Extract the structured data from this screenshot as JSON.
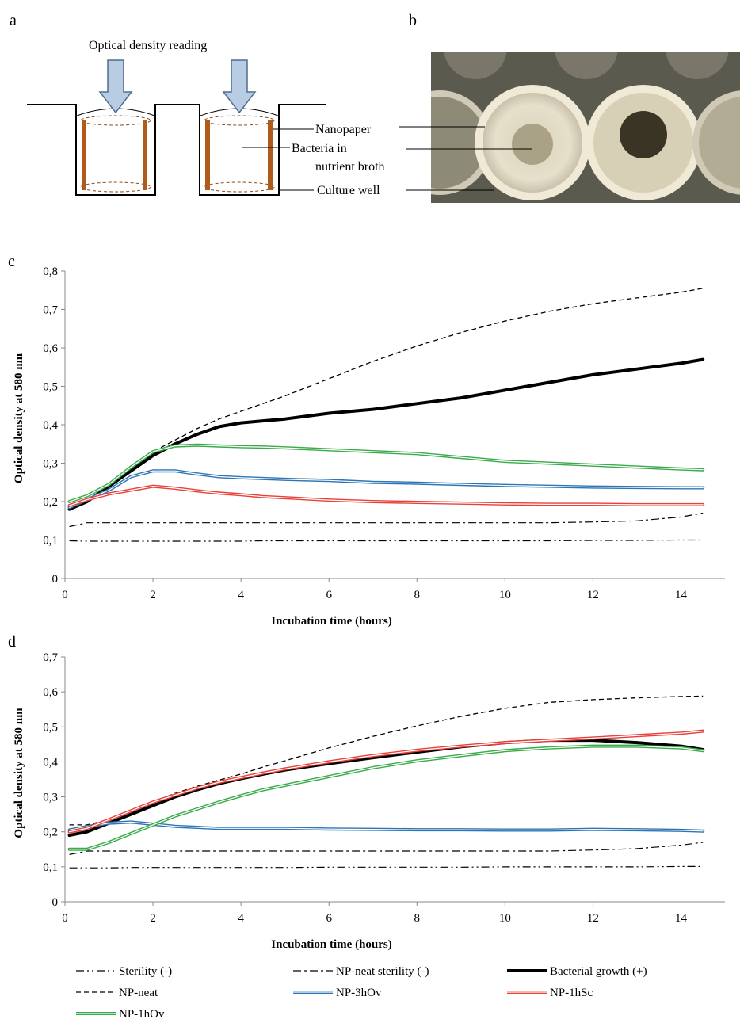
{
  "panels": {
    "a": {
      "letter": "a",
      "title": "Optical density reading",
      "labels": {
        "nanopaper": "Nanopaper",
        "bacteria_line1": "Bacteria in",
        "bacteria_line2": "nutrient broth",
        "culture_well": "Culture well"
      }
    },
    "b": {
      "letter": "b"
    },
    "c": {
      "letter": "c"
    },
    "d": {
      "letter": "d"
    }
  },
  "colors": {
    "black": "#000000",
    "blue": "#2e75b6",
    "red": "#e8403a",
    "green": "#3aaa4a",
    "well_brown": "#b05a1c",
    "arrow_fill": "#b8cce4",
    "arrow_stroke": "#4f6d8f"
  },
  "legend": [
    {
      "name": "Sterility (-)",
      "style": "dashdotdot"
    },
    {
      "name": "NP-neat sterility (-)",
      "style": "dashdot"
    },
    {
      "name": "Bacterial growth (+)",
      "style": "thick"
    },
    {
      "name": "NP-neat",
      "style": "dashed"
    },
    {
      "name": "NP-3hOv",
      "style": "double-blue"
    },
    {
      "name": "NP-1hSc",
      "style": "double-red"
    },
    {
      "name": "NP-1hOv",
      "style": "double-green"
    }
  ],
  "chart_data": [
    {
      "type": "line",
      "panel": "c",
      "xlabel": "Incubation time (hours)",
      "ylabel": "Optical density at 580 nm",
      "xlim": [
        0,
        15
      ],
      "ylim": [
        0,
        0.8
      ],
      "xticks": [
        "0",
        "2",
        "4",
        "6",
        "8",
        "10",
        "12",
        "14"
      ],
      "yticks": [
        "0",
        "0,1",
        "0,2",
        "0,3",
        "0,4",
        "0,5",
        "0,6",
        "0,7",
        "0,8"
      ],
      "grid": false,
      "legend_position": "bottom",
      "x": [
        0.1,
        0.5,
        1.0,
        1.5,
        2.0,
        2.5,
        3.0,
        3.5,
        4.0,
        4.5,
        5.0,
        6.0,
        7.0,
        8.0,
        9.0,
        10.0,
        11.0,
        12.0,
        13.0,
        14.0,
        14.5
      ],
      "series": [
        {
          "name": "Sterility (-)",
          "style": "dashdotdot",
          "values": [
            0.098,
            0.097,
            0.097,
            0.097,
            0.097,
            0.097,
            0.097,
            0.097,
            0.097,
            0.098,
            0.098,
            0.098,
            0.098,
            0.098,
            0.098,
            0.098,
            0.098,
            0.099,
            0.099,
            0.1,
            0.1
          ]
        },
        {
          "name": "NP-neat sterility (-)",
          "style": "dashdot",
          "values": [
            0.135,
            0.145,
            0.145,
            0.145,
            0.145,
            0.145,
            0.145,
            0.145,
            0.145,
            0.145,
            0.145,
            0.145,
            0.145,
            0.145,
            0.145,
            0.145,
            0.145,
            0.147,
            0.15,
            0.16,
            0.17
          ]
        },
        {
          "name": "Bacterial growth (+)",
          "style": "thick",
          "values": [
            0.18,
            0.2,
            0.24,
            0.28,
            0.32,
            0.35,
            0.375,
            0.395,
            0.405,
            0.41,
            0.415,
            0.43,
            0.44,
            0.455,
            0.47,
            0.49,
            0.51,
            0.53,
            0.545,
            0.56,
            0.57
          ]
        },
        {
          "name": "NP-neat",
          "style": "dashed",
          "values": [
            0.18,
            0.2,
            0.245,
            0.29,
            0.33,
            0.36,
            0.39,
            0.415,
            0.435,
            0.455,
            0.475,
            0.52,
            0.565,
            0.605,
            0.64,
            0.67,
            0.695,
            0.715,
            0.73,
            0.745,
            0.755
          ]
        },
        {
          "name": "NP-3hOv",
          "style": "double-blue",
          "values": [
            0.185,
            0.205,
            0.23,
            0.265,
            0.28,
            0.28,
            0.272,
            0.265,
            0.262,
            0.26,
            0.258,
            0.255,
            0.25,
            0.248,
            0.245,
            0.242,
            0.24,
            0.238,
            0.237,
            0.236,
            0.236
          ]
        },
        {
          "name": "NP-1hSc",
          "style": "double-red",
          "values": [
            0.19,
            0.205,
            0.22,
            0.23,
            0.24,
            0.235,
            0.228,
            0.222,
            0.218,
            0.213,
            0.21,
            0.204,
            0.2,
            0.198,
            0.196,
            0.194,
            0.193,
            0.193,
            0.192,
            0.192,
            0.192
          ]
        },
        {
          "name": "NP-1hOv",
          "style": "double-green",
          "values": [
            0.2,
            0.215,
            0.245,
            0.29,
            0.33,
            0.345,
            0.347,
            0.345,
            0.343,
            0.342,
            0.34,
            0.335,
            0.33,
            0.325,
            0.315,
            0.305,
            0.3,
            0.295,
            0.29,
            0.285,
            0.283
          ]
        }
      ]
    },
    {
      "type": "line",
      "panel": "d",
      "xlabel": "Incubation time (hours)",
      "ylabel": "Optical density at 580 nm",
      "xlim": [
        0,
        15
      ],
      "ylim": [
        0,
        0.7
      ],
      "xticks": [
        "0",
        "2",
        "4",
        "6",
        "8",
        "10",
        "12",
        "14"
      ],
      "yticks": [
        "0",
        "0,1",
        "0,2",
        "0,3",
        "0,4",
        "0,5",
        "0,6",
        "0,7"
      ],
      "grid": false,
      "legend_position": "bottom",
      "x": [
        0.1,
        0.5,
        1.0,
        1.5,
        2.0,
        2.5,
        3.0,
        3.5,
        4.0,
        4.5,
        5.0,
        6.0,
        7.0,
        8.0,
        9.0,
        10.0,
        11.0,
        12.0,
        13.0,
        14.0,
        14.5
      ],
      "series": [
        {
          "name": "Sterility (-)",
          "style": "dashdotdot",
          "values": [
            0.097,
            0.097,
            0.097,
            0.098,
            0.098,
            0.098,
            0.098,
            0.098,
            0.098,
            0.098,
            0.098,
            0.099,
            0.099,
            0.099,
            0.099,
            0.1,
            0.1,
            0.1,
            0.1,
            0.101,
            0.101
          ]
        },
        {
          "name": "NP-neat sterility (-)",
          "style": "dashdot",
          "values": [
            0.135,
            0.145,
            0.145,
            0.145,
            0.145,
            0.145,
            0.145,
            0.145,
            0.145,
            0.145,
            0.145,
            0.145,
            0.145,
            0.145,
            0.145,
            0.145,
            0.145,
            0.148,
            0.152,
            0.162,
            0.17
          ]
        },
        {
          "name": "Bacterial growth (+)",
          "style": "thick",
          "values": [
            0.19,
            0.2,
            0.225,
            0.25,
            0.275,
            0.3,
            0.32,
            0.338,
            0.352,
            0.365,
            0.377,
            0.395,
            0.412,
            0.428,
            0.443,
            0.455,
            0.462,
            0.462,
            0.455,
            0.445,
            0.435
          ]
        },
        {
          "name": "NP-neat",
          "style": "dashed",
          "values": [
            0.22,
            0.22,
            0.235,
            0.26,
            0.285,
            0.31,
            0.33,
            0.348,
            0.365,
            0.385,
            0.403,
            0.44,
            0.473,
            0.503,
            0.53,
            0.553,
            0.57,
            0.578,
            0.583,
            0.587,
            0.588
          ]
        },
        {
          "name": "NP-3hOv",
          "style": "double-blue",
          "values": [
            0.205,
            0.215,
            0.225,
            0.228,
            0.222,
            0.216,
            0.213,
            0.21,
            0.21,
            0.21,
            0.21,
            0.208,
            0.207,
            0.206,
            0.206,
            0.205,
            0.205,
            0.207,
            0.206,
            0.204,
            0.202
          ]
        },
        {
          "name": "NP-1hSc",
          "style": "double-red",
          "values": [
            0.2,
            0.21,
            0.235,
            0.26,
            0.285,
            0.305,
            0.325,
            0.342,
            0.355,
            0.368,
            0.38,
            0.4,
            0.418,
            0.433,
            0.445,
            0.455,
            0.462,
            0.468,
            0.475,
            0.482,
            0.488
          ]
        },
        {
          "name": "NP-1hOv",
          "style": "double-green",
          "values": [
            0.15,
            0.15,
            0.17,
            0.195,
            0.22,
            0.245,
            0.265,
            0.285,
            0.303,
            0.32,
            0.333,
            0.358,
            0.383,
            0.403,
            0.418,
            0.432,
            0.44,
            0.445,
            0.445,
            0.44,
            0.432
          ]
        }
      ]
    }
  ]
}
